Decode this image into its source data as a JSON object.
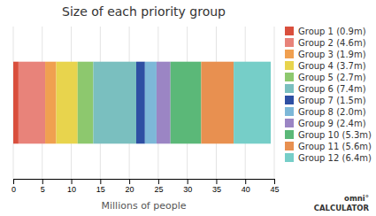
{
  "chart_data": {
    "type": "bar",
    "orientation": "horizontal",
    "stacked": true,
    "title": "Size of each priority group",
    "x_label": "Millions of people",
    "categories": [
      null
    ],
    "series": [
      {
        "name": "Group 1 (0.9m)",
        "color": "#d94f3d",
        "values": [
          0.9
        ]
      },
      {
        "name": "Group 2 (4.6m)",
        "color": "#e8837a",
        "values": [
          4.6
        ]
      },
      {
        "name": "Group 3 (1.9m)",
        "color": "#f0a050",
        "values": [
          1.9
        ]
      },
      {
        "name": "Group 4 (3.7m)",
        "color": "#e8d44d",
        "values": [
          3.7
        ]
      },
      {
        "name": "Group 5 (2.7m)",
        "color": "#8dc86e",
        "values": [
          2.7
        ]
      },
      {
        "name": "Group 6 (7.4m)",
        "color": "#7abfbf",
        "values": [
          7.4
        ]
      },
      {
        "name": "Group 7 (1.5m)",
        "color": "#2e4fa3",
        "values": [
          1.5
        ]
      },
      {
        "name": "Group 8 (2.0m)",
        "color": "#7db8d8",
        "values": [
          2.0
        ]
      },
      {
        "name": "Group 9 (2.4m)",
        "color": "#9b85c4",
        "values": [
          2.4
        ]
      },
      {
        "name": "Group 10 (5.3m)",
        "color": "#5bb878",
        "values": [
          5.3
        ]
      },
      {
        "name": "Group 11 (5.6m)",
        "color": "#e89050",
        "values": [
          5.6
        ]
      },
      {
        "name": "Group 12 (6.4m)",
        "color": "#76cec8",
        "values": [
          6.4
        ]
      }
    ],
    "xlim": [
      0,
      45
    ],
    "xticks": [
      0,
      5,
      10,
      15,
      20,
      25,
      30,
      35,
      40,
      45
    ],
    "grid": true,
    "legend": "right",
    "tick_labels": "x",
    "annotations": [
      "omni°\nCALCULATOR"
    ]
  }
}
